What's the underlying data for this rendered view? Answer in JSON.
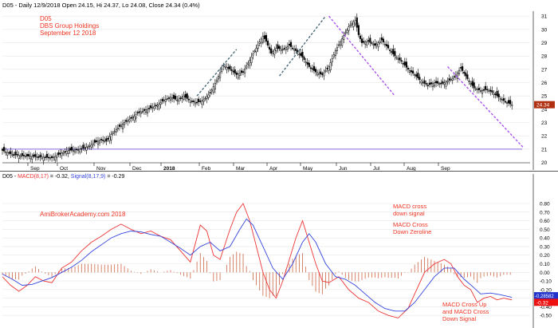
{
  "header": {
    "price_title": "D05 - Daily 12/9/2018 Open 24.15, Hi 24.37, Lo 24.08, Close 24.34 (0.4%)",
    "macd_prefix": "D05 - ",
    "macd_label": "MACD(8,17)",
    "macd_value": " = -0.32, ",
    "signal_label": "Signal(8,17,9)",
    "signal_value": " = -0.29"
  },
  "annotations": {
    "ticker": "D05",
    "company": "DBS Group Holdings",
    "date": "September 12 2018",
    "watermark": "AmiBrokerAcademy.com  2018",
    "note1_line1": "MACD cross",
    "note1_line2": "down signal",
    "note2_line1": "MACD Cross",
    "note2_line2": "Down Zeroline",
    "note3_line1": "MACD Cross Up",
    "note3_line2": "and MACD Cross",
    "note3_line3": "Down Signal"
  },
  "colors": {
    "up_candle": "#ffffff",
    "down_candle": "#000000",
    "support_line": "#8866dd",
    "trend_down": "#aa55ee",
    "trend_up": "#4a6a7a",
    "macd_line": "#ee3333",
    "signal_line": "#3344dd",
    "histogram": "#cc6644",
    "annotation_text": "#ee3322",
    "price_tag": "#b03010",
    "macd_tag": "#ee1111",
    "signal_tag": "#2233cc"
  },
  "chart_data": [
    {
      "type": "candlestick",
      "x_tick_labels": [
        "Sep",
        "Oct",
        "Nov",
        "Dec",
        "2018",
        "Feb",
        "Mar",
        "Apr",
        "May",
        "Jun",
        "Jul",
        "Aug",
        "Sep"
      ],
      "ylim": [
        20,
        31
      ],
      "y_ticks": [
        20,
        21,
        22,
        23,
        24,
        25,
        26,
        27,
        28,
        29,
        30,
        31
      ],
      "y_tick_labels": [
        "20",
        "21",
        "22",
        "23",
        "24",
        "25",
        "26",
        "27",
        "28",
        "29",
        "30",
        "31"
      ],
      "last_close": 24.34,
      "last_close_label": "24.34",
      "support_level": 21,
      "close_path": [
        [
          0,
          20.9
        ],
        [
          6,
          20.6
        ],
        [
          12,
          20.5
        ],
        [
          18,
          20.45
        ],
        [
          24,
          20.4
        ],
        [
          30,
          20.35
        ],
        [
          33,
          20.5
        ],
        [
          36,
          20.7
        ],
        [
          40,
          20.9
        ],
        [
          46,
          20.95
        ],
        [
          52,
          21.2
        ],
        [
          56,
          21.5
        ],
        [
          60,
          21.7
        ],
        [
          63,
          21.6
        ],
        [
          66,
          22.1
        ],
        [
          70,
          22.6
        ],
        [
          74,
          23.0
        ],
        [
          78,
          23.3
        ],
        [
          82,
          23.7
        ],
        [
          86,
          23.9
        ],
        [
          90,
          24.1
        ],
        [
          94,
          24.3
        ],
        [
          98,
          24.7
        ],
        [
          102,
          24.9
        ],
        [
          106,
          24.7
        ],
        [
          110,
          25.0
        ],
        [
          114,
          24.6
        ],
        [
          118,
          24.5
        ],
        [
          122,
          24.7
        ],
        [
          126,
          25.2
        ],
        [
          130,
          26.2
        ],
        [
          134,
          27.3
        ],
        [
          138,
          27.0
        ],
        [
          142,
          26.6
        ],
        [
          146,
          26.8
        ],
        [
          150,
          27.7
        ],
        [
          154,
          28.6
        ],
        [
          158,
          29.5
        ],
        [
          160,
          29.1
        ],
        [
          163,
          28.2
        ],
        [
          166,
          28.6
        ],
        [
          170,
          28.5
        ],
        [
          174,
          28.8
        ],
        [
          178,
          28.4
        ],
        [
          182,
          27.9
        ],
        [
          186,
          27.2
        ],
        [
          190,
          26.8
        ],
        [
          194,
          26.6
        ],
        [
          198,
          27.2
        ],
        [
          202,
          28.4
        ],
        [
          206,
          29.3
        ],
        [
          210,
          30.2
        ],
        [
          214,
          30.7
        ],
        [
          216,
          29.6
        ],
        [
          218,
          29.0
        ],
        [
          222,
          29.1
        ],
        [
          226,
          28.8
        ],
        [
          230,
          29.2
        ],
        [
          234,
          28.6
        ],
        [
          238,
          28.0
        ],
        [
          242,
          27.6
        ],
        [
          246,
          27.0
        ],
        [
          250,
          26.6
        ],
        [
          254,
          26.1
        ],
        [
          258,
          25.8
        ],
        [
          262,
          26.0
        ],
        [
          266,
          25.9
        ],
        [
          270,
          26.1
        ],
        [
          274,
          26.4
        ],
        [
          278,
          27.1
        ],
        [
          282,
          26.3
        ],
        [
          286,
          25.6
        ],
        [
          290,
          25.4
        ],
        [
          294,
          25.5
        ],
        [
          298,
          25.2
        ],
        [
          302,
          24.8
        ],
        [
          306,
          24.5
        ],
        [
          309,
          24.34
        ]
      ],
      "trendlines": [
        {
          "kind": "up",
          "points": [
            [
              118,
              25.0
            ],
            [
              142,
              28.5
            ]
          ]
        },
        {
          "kind": "up",
          "points": [
            [
              168,
              26.5
            ],
            [
              196,
              31.0
            ]
          ]
        },
        {
          "kind": "down",
          "points": [
            [
              198,
              31.0
            ],
            [
              238,
              25.0
            ]
          ]
        },
        {
          "kind": "down",
          "points": [
            [
              270,
              27.2
            ],
            [
              316,
              21.1
            ]
          ]
        }
      ]
    },
    {
      "type": "macd",
      "ylim": [
        -0.6,
        0.8
      ],
      "y_ticks": [
        0.8,
        0.7,
        0.6,
        0.5,
        0.4,
        0.3,
        0.2,
        0.1,
        0.0,
        -0.1,
        -0.2,
        -0.3,
        -0.4,
        -0.5
      ],
      "y_tick_labels": [
        "0.80",
        "0.70",
        "0.60",
        "0.50",
        "0.40",
        "0.30",
        "0.20",
        "0.10",
        "0.00",
        "-0.10",
        "-0.20",
        "-0.30",
        "-0.40",
        "-0.50"
      ],
      "macd_value": -0.32,
      "signal_value": -0.29,
      "macd_tag_label": "-0.32",
      "signal_tag_label": "-0.28582",
      "series": [
        {
          "key": "macd",
          "name": "MACD(8,17)",
          "points": [
            [
              0,
              -0.05
            ],
            [
              5,
              -0.15
            ],
            [
              10,
              -0.22
            ],
            [
              15,
              -0.15
            ],
            [
              20,
              -0.05
            ],
            [
              25,
              -0.1
            ],
            [
              30,
              -0.12
            ],
            [
              36,
              0.05
            ],
            [
              42,
              0.12
            ],
            [
              48,
              0.25
            ],
            [
              54,
              0.35
            ],
            [
              60,
              0.42
            ],
            [
              66,
              0.5
            ],
            [
              72,
              0.56
            ],
            [
              78,
              0.5
            ],
            [
              84,
              0.45
            ],
            [
              90,
              0.48
            ],
            [
              96,
              0.42
            ],
            [
              102,
              0.38
            ],
            [
              108,
              0.25
            ],
            [
              114,
              0.12
            ],
            [
              120,
              0.55
            ],
            [
              124,
              0.48
            ],
            [
              128,
              0.2
            ],
            [
              132,
              0.15
            ],
            [
              138,
              0.5
            ],
            [
              142,
              0.7
            ],
            [
              146,
              0.8
            ],
            [
              150,
              0.6
            ],
            [
              154,
              0.3
            ],
            [
              158,
              0.0
            ],
            [
              162,
              -0.2
            ],
            [
              166,
              -0.3
            ],
            [
              170,
              -0.1
            ],
            [
              174,
              0.15
            ],
            [
              178,
              0.4
            ],
            [
              182,
              0.6
            ],
            [
              186,
              0.35
            ],
            [
              190,
              0.1
            ],
            [
              194,
              -0.1
            ],
            [
              198,
              -0.12
            ],
            [
              204,
              -0.05
            ],
            [
              210,
              -0.2
            ],
            [
              216,
              -0.3
            ],
            [
              222,
              -0.35
            ],
            [
              228,
              -0.45
            ],
            [
              234,
              -0.5
            ],
            [
              240,
              -0.53
            ],
            [
              246,
              -0.42
            ],
            [
              250,
              -0.25
            ],
            [
              256,
              0.0
            ],
            [
              262,
              0.1
            ],
            [
              268,
              0.15
            ],
            [
              272,
              0.1
            ],
            [
              276,
              -0.05
            ],
            [
              280,
              -0.15
            ],
            [
              284,
              -0.2
            ],
            [
              288,
              -0.35
            ],
            [
              292,
              -0.3
            ],
            [
              296,
              -0.28
            ],
            [
              300,
              -0.32
            ],
            [
              304,
              -0.3
            ],
            [
              309,
              -0.32
            ]
          ]
        },
        {
          "key": "signal",
          "name": "Signal(8,17,9)",
          "points": [
            [
              0,
              -0.02
            ],
            [
              6,
              -0.08
            ],
            [
              12,
              -0.15
            ],
            [
              18,
              -0.14
            ],
            [
              24,
              -0.1
            ],
            [
              30,
              -0.06
            ],
            [
              36,
              0.0
            ],
            [
              42,
              0.06
            ],
            [
              48,
              0.14
            ],
            [
              54,
              0.24
            ],
            [
              60,
              0.32
            ],
            [
              66,
              0.4
            ],
            [
              72,
              0.45
            ],
            [
              78,
              0.48
            ],
            [
              84,
              0.47
            ],
            [
              90,
              0.44
            ],
            [
              96,
              0.42
            ],
            [
              102,
              0.35
            ],
            [
              108,
              0.28
            ],
            [
              114,
              0.2
            ],
            [
              120,
              0.3
            ],
            [
              126,
              0.35
            ],
            [
              132,
              0.25
            ],
            [
              138,
              0.3
            ],
            [
              144,
              0.5
            ],
            [
              148,
              0.62
            ],
            [
              152,
              0.55
            ],
            [
              158,
              0.3
            ],
            [
              164,
              0.05
            ],
            [
              170,
              -0.08
            ],
            [
              176,
              0.1
            ],
            [
              182,
              0.35
            ],
            [
              186,
              0.45
            ],
            [
              190,
              0.35
            ],
            [
              196,
              0.1
            ],
            [
              202,
              -0.05
            ],
            [
              208,
              -0.08
            ],
            [
              214,
              -0.15
            ],
            [
              220,
              -0.25
            ],
            [
              226,
              -0.35
            ],
            [
              232,
              -0.42
            ],
            [
              238,
              -0.45
            ],
            [
              244,
              -0.45
            ],
            [
              250,
              -0.35
            ],
            [
              256,
              -0.2
            ],
            [
              262,
              -0.05
            ],
            [
              268,
              0.05
            ],
            [
              274,
              0.05
            ],
            [
              280,
              -0.08
            ],
            [
              286,
              -0.18
            ],
            [
              290,
              -0.25
            ],
            [
              296,
              -0.24
            ],
            [
              302,
              -0.26
            ],
            [
              309,
              -0.29
            ]
          ]
        }
      ]
    }
  ]
}
